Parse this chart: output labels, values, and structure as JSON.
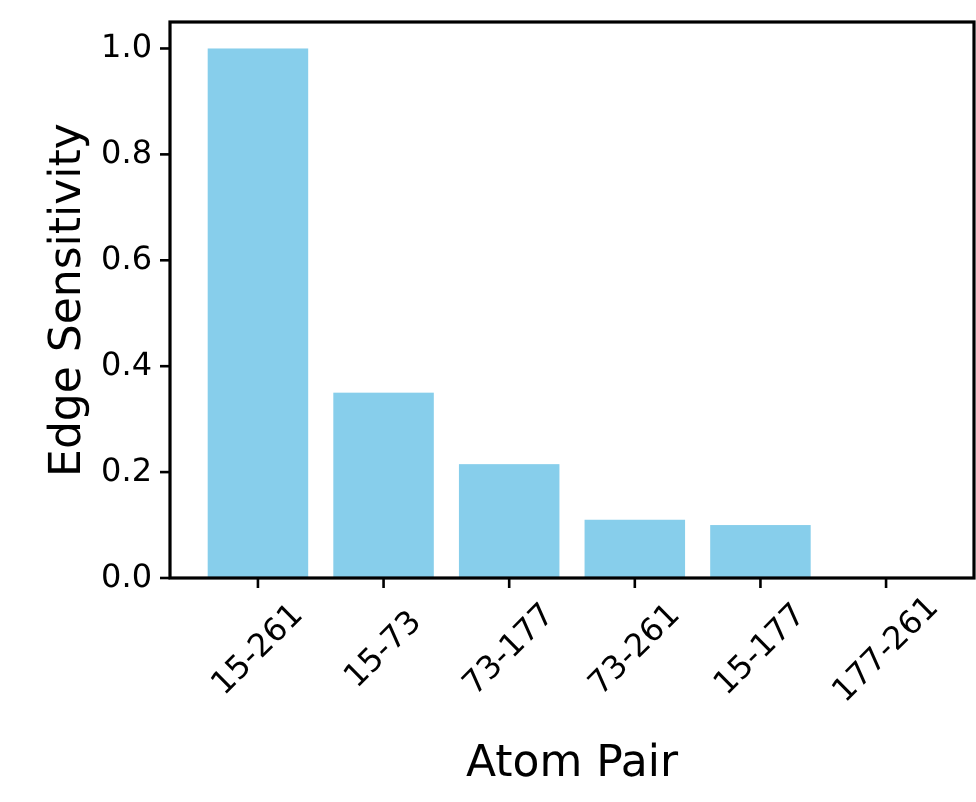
{
  "chart_data": {
    "type": "bar",
    "xlabel": "Atom Pair",
    "ylabel": "Edge Sensitivity",
    "categories": [
      "15-261",
      "15-73",
      "73-177",
      "73-261",
      "15-177",
      "177-261"
    ],
    "values": [
      1.0,
      0.35,
      0.215,
      0.11,
      0.1,
      0.0
    ],
    "color": "#87ceeb",
    "ylim": [
      0,
      1.05
    ],
    "yticks": [
      {
        "value": 0,
        "label": "0.0"
      },
      {
        "value": 0.2,
        "label": "0.2"
      },
      {
        "value": 0.4,
        "label": "0.4"
      },
      {
        "value": 0.6,
        "label": "0.6"
      },
      {
        "value": 0.8,
        "label": "0.8"
      },
      {
        "value": 1.0,
        "label": "1.0"
      }
    ],
    "grid": false
  }
}
